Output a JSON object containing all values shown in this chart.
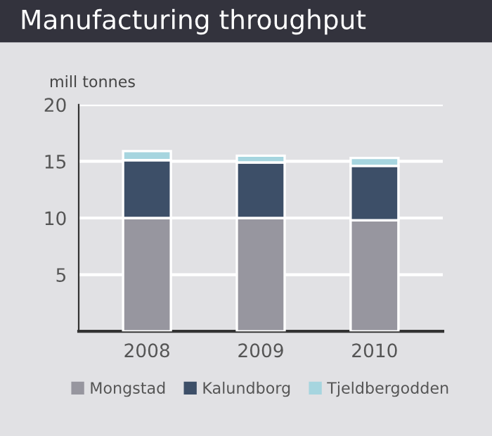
{
  "chart_data": {
    "type": "bar",
    "title": "Manufacturing throughput",
    "ylabel": "mill tonnes",
    "categories": [
      "2008",
      "2009",
      "2010"
    ],
    "stacked": true,
    "series": [
      {
        "name": "Mongstad",
        "color": "#97969f",
        "values": [
          10.0,
          10.0,
          9.8
        ]
      },
      {
        "name": "Kalundborg",
        "color": "#3d4f68",
        "values": [
          5.1,
          4.9,
          4.8
        ]
      },
      {
        "name": "Tjeldbergodden",
        "color": "#a6d5df",
        "values": [
          0.8,
          0.6,
          0.7
        ]
      }
    ],
    "ylim": [
      0,
      20
    ],
    "yticks": [
      {
        "value": 0,
        "label": null
      },
      5,
      10,
      15,
      20
    ],
    "grid": "y",
    "legend": "bottom"
  }
}
